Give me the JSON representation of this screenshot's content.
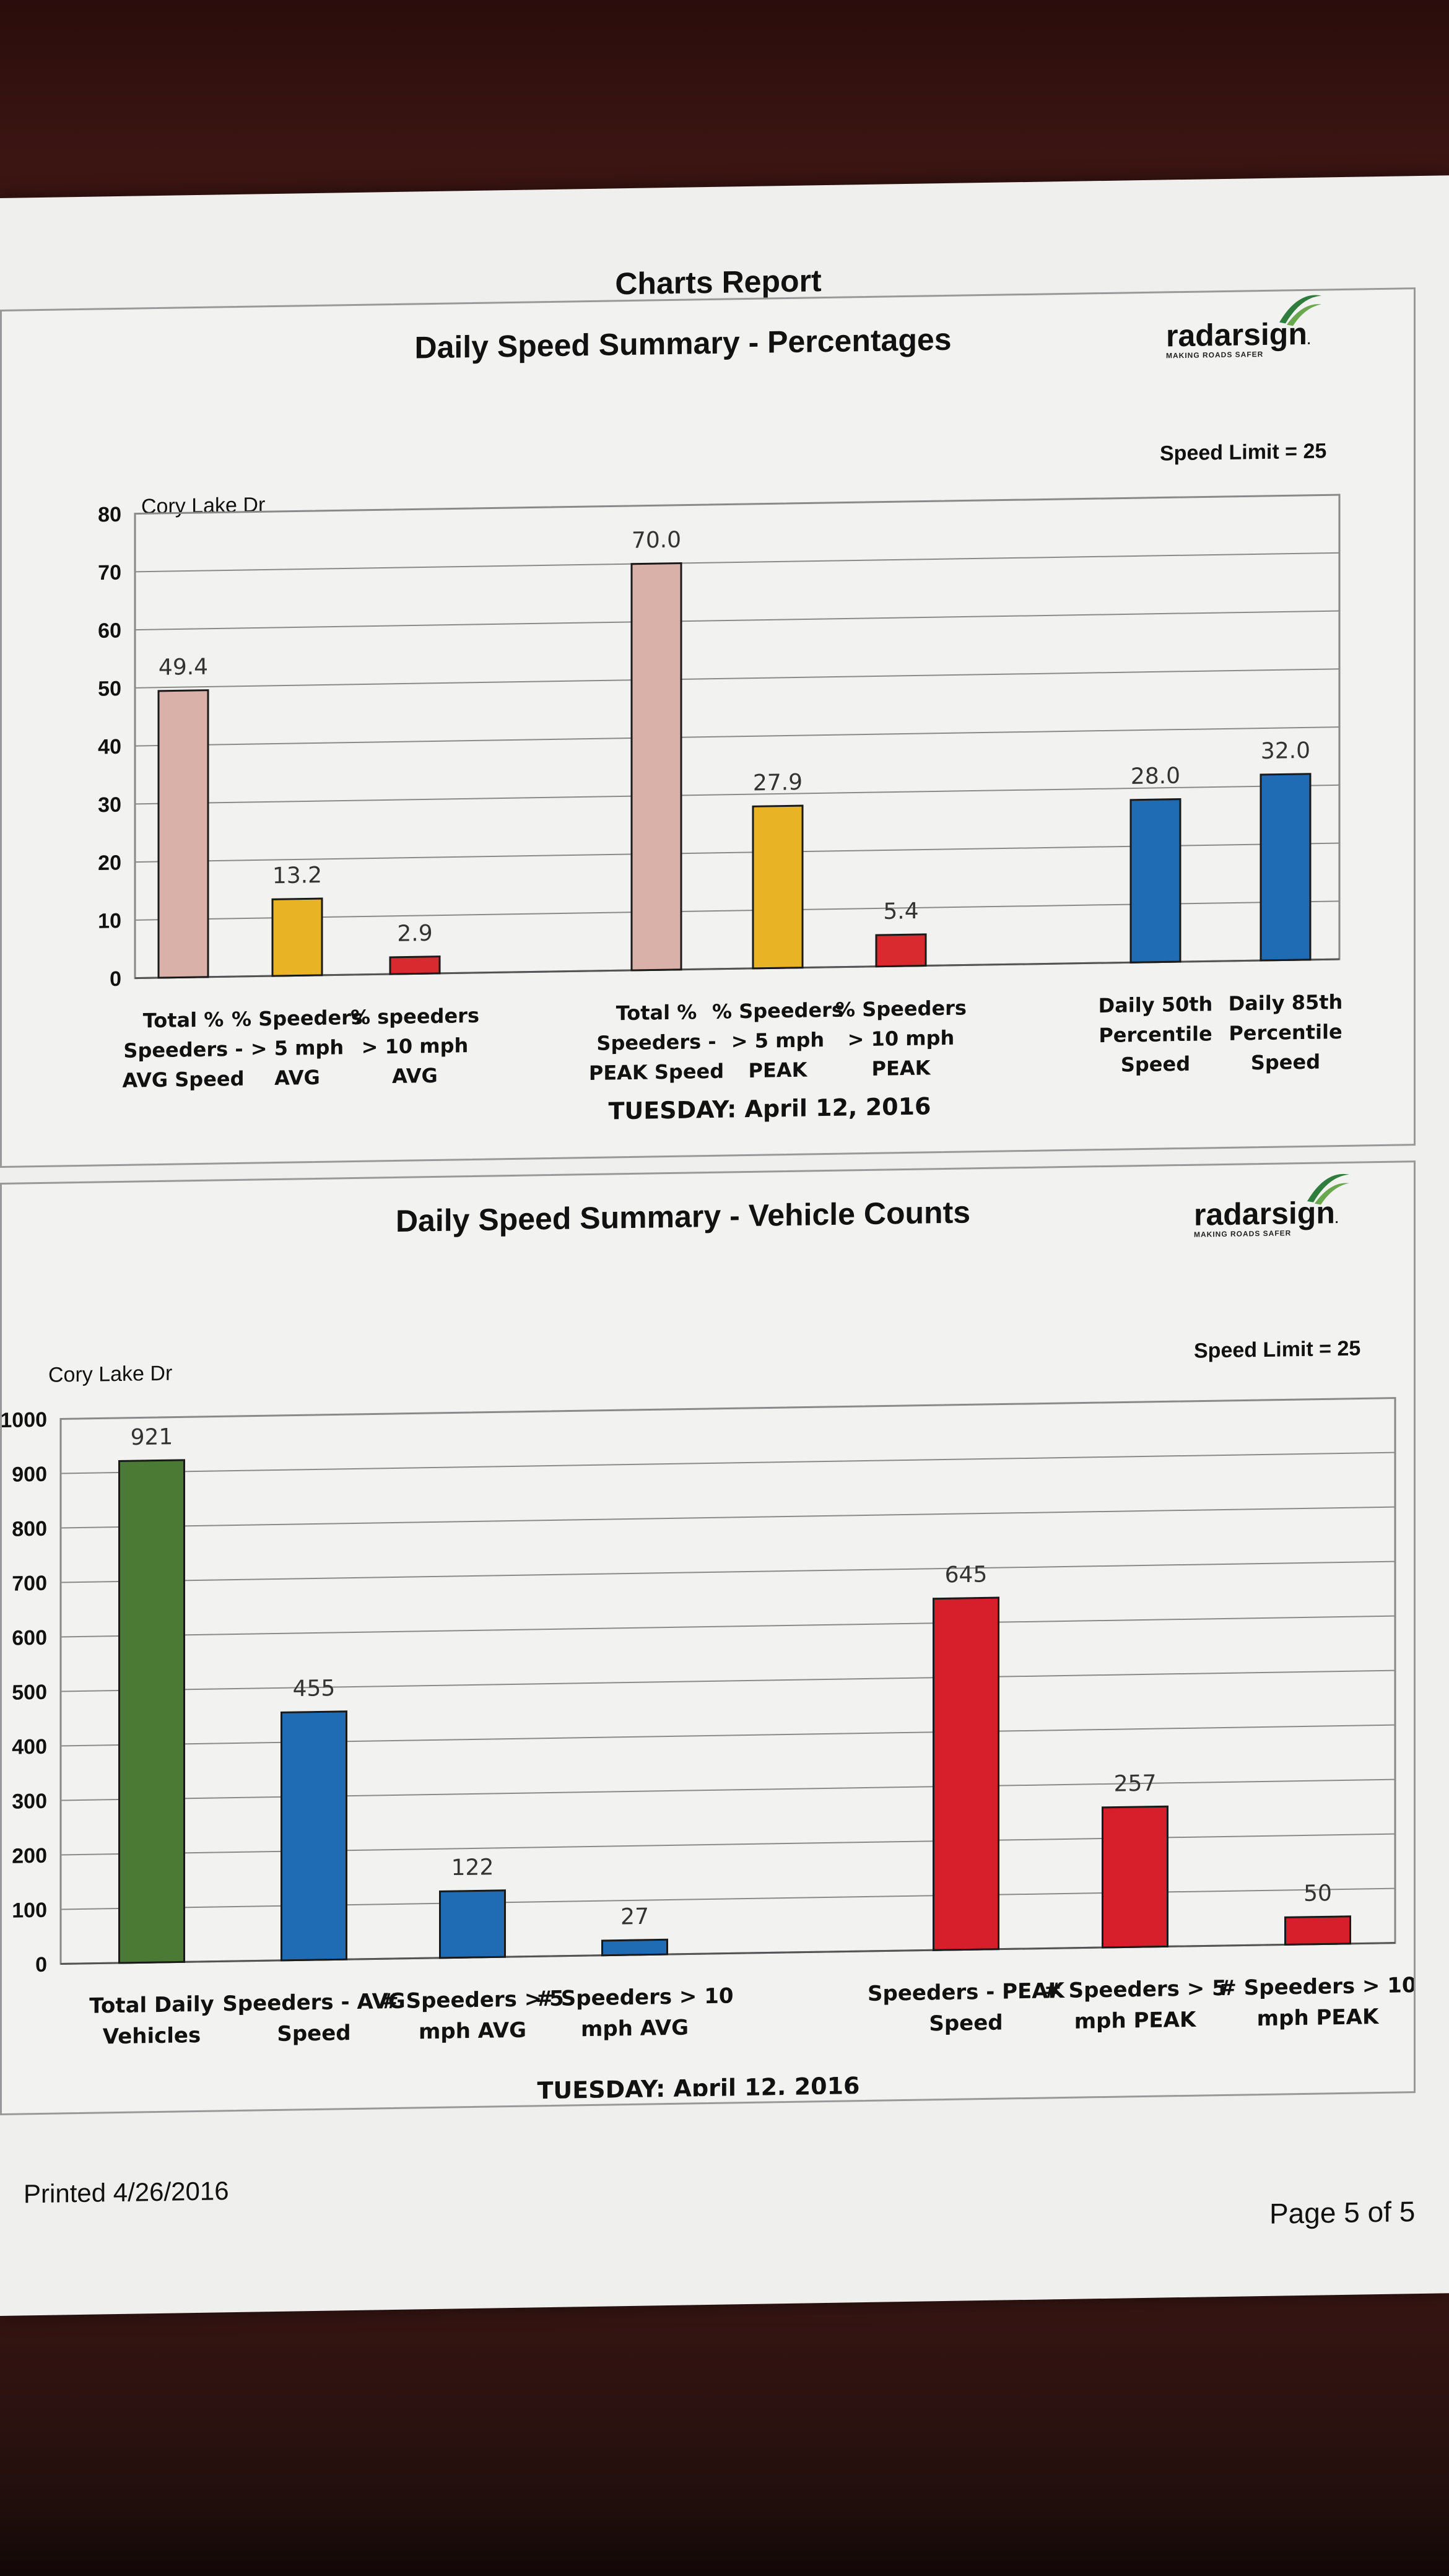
{
  "report_title": "Charts Report",
  "printed": "Printed 4/26/2016",
  "page": "Page 5 of 5",
  "logo": {
    "text": "radarsign",
    "tagline": "MAKING ROADS SAFER"
  },
  "chart_data": [
    {
      "type": "bar",
      "title": "Daily Speed Summary - Percentages",
      "road": "Cory Lake Dr",
      "speed_limit": "Speed Limit = 25",
      "xlabel": "TUESDAY: April 12, 2016",
      "ylim": [
        0,
        80
      ],
      "yticks": [
        0,
        10,
        20,
        30,
        40,
        50,
        60,
        70,
        80
      ],
      "grid": true,
      "categories": [
        [
          "Total %",
          "Speeders -",
          "AVG Speed"
        ],
        [
          "% Speeders",
          "> 5 mph",
          "AVG"
        ],
        [
          "% speeders",
          "> 10 mph",
          "AVG"
        ],
        [
          "Total %",
          "Speeders -",
          "PEAK Speed"
        ],
        [
          "% Speeders",
          "> 5 mph",
          "PEAK"
        ],
        [
          "% Speeders",
          "> 10 mph",
          "PEAK"
        ],
        [
          "Daily 50th",
          "Percentile",
          "Speed"
        ],
        [
          "Daily 85th",
          "Percentile",
          "Speed"
        ]
      ],
      "values": [
        49.4,
        13.2,
        2.9,
        70.0,
        27.9,
        5.4,
        28.0,
        32.0
      ],
      "labels": [
        "49.4",
        "13.2",
        "2.9",
        "70.0",
        "27.9",
        "5.4",
        "28.0",
        "32.0"
      ],
      "colors": [
        "#d9b1a9",
        "#e8b426",
        "#d92b2f",
        "#d9b1a9",
        "#e8b426",
        "#d92b2f",
        "#1f6bb4",
        "#1f6bb4"
      ]
    },
    {
      "type": "bar",
      "title": "Daily Speed Summary - Vehicle Counts",
      "road": "Cory Lake Dr",
      "speed_limit": "Speed Limit = 25",
      "xlabel": "TUESDAY: April 12, 2016",
      "ylim": [
        0,
        1000
      ],
      "yticks": [
        0,
        100,
        200,
        300,
        400,
        500,
        600,
        700,
        800,
        900,
        1000
      ],
      "grid": true,
      "categories": [
        [
          "Total Daily",
          "Vehicles"
        ],
        [
          "Speeders - AVG",
          "Speed"
        ],
        [
          "# Speeders > 5",
          "mph AVG"
        ],
        [
          "# Speeders > 10",
          "mph AVG"
        ],
        [
          "Speeders - PEAK",
          "Speed"
        ],
        [
          "# Speeders > 5",
          "mph PEAK"
        ],
        [
          "# Speeders > 10",
          "mph PEAK"
        ]
      ],
      "values": [
        921,
        455,
        122,
        27,
        645,
        257,
        50
      ],
      "labels": [
        "921",
        "455",
        "122",
        "27",
        "645",
        "257",
        "50"
      ],
      "colors": [
        "#4a7a34",
        "#1f6bb4",
        "#1f6bb4",
        "#1f6bb4",
        "#d61f2b",
        "#d61f2b",
        "#d61f2b"
      ]
    }
  ]
}
